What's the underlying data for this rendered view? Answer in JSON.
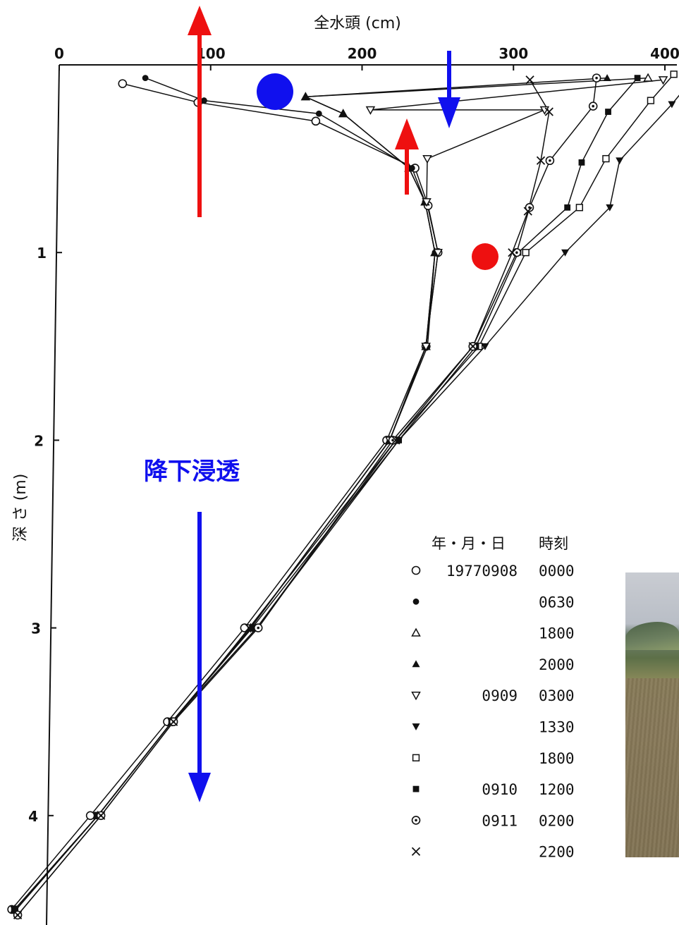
{
  "chart_data": {
    "type": "line",
    "xlabel": "全水頭 (cm)",
    "ylabel": "深 さ (m)",
    "xlim": [
      0,
      410
    ],
    "ylim": [
      0,
      4.5
    ],
    "y_inverted": true,
    "x_ticks": [
      0,
      100,
      200,
      300,
      400
    ],
    "y_ticks": [
      1,
      2,
      3,
      4
    ],
    "legend": {
      "header_date": "年・月・日",
      "header_time": "時刻",
      "placement": "bottom-right",
      "entries": [
        {
          "marker": "open-circle",
          "symbol": "○",
          "date": "19770908",
          "time": "0000"
        },
        {
          "marker": "filled-circle",
          "symbol": "●",
          "date": "",
          "time": "0630"
        },
        {
          "marker": "open-triangle-up",
          "symbol": "△",
          "date": "",
          "time": "1800"
        },
        {
          "marker": "filled-triangle-up",
          "symbol": "▲",
          "date": "",
          "time": "2000"
        },
        {
          "marker": "open-triangle-down",
          "symbol": "▽",
          "date": "0909",
          "time": "0300"
        },
        {
          "marker": "filled-triangle-down",
          "symbol": "▼",
          "date": "",
          "time": "1330"
        },
        {
          "marker": "open-square",
          "symbol": "□",
          "date": "",
          "time": "1800"
        },
        {
          "marker": "filled-square",
          "symbol": "■",
          "date": "0910",
          "time": "1200"
        },
        {
          "marker": "dotted-circle",
          "symbol": "⊙",
          "date": "0911",
          "time": "0200"
        },
        {
          "marker": "cross",
          "symbol": "×",
          "date": "",
          "time": "2200"
        }
      ]
    },
    "series": [
      {
        "name": "0000",
        "marker": "open-circle",
        "points": [
          [
            42,
            0.1
          ],
          [
            92,
            0.2
          ],
          [
            170,
            0.3
          ],
          [
            236,
            0.55
          ],
          [
            245,
            0.75
          ],
          [
            252,
            1.0
          ],
          [
            245,
            1.5
          ],
          [
            220,
            2.0
          ],
          [
            128,
            3.0
          ],
          [
            78,
            3.5
          ],
          [
            28,
            4.0
          ],
          [
            -23,
            4.5
          ]
        ]
      },
      {
        "name": "0630",
        "marker": "filled-circle",
        "points": [
          [
            57,
            0.07
          ],
          [
            96,
            0.19
          ],
          [
            172,
            0.26
          ],
          [
            234,
            0.55
          ],
          [
            243,
            0.73
          ],
          [
            250,
            1.0
          ],
          [
            246,
            1.5
          ],
          [
            222,
            2.0
          ],
          [
            132,
            3.0
          ],
          [
            81,
            3.5
          ],
          [
            33,
            4.0
          ],
          [
            -21,
            4.51
          ]
        ]
      },
      {
        "name": "1800",
        "marker": "open-triangle-up",
        "points": [
          [
            389,
            0.07
          ],
          [
            163,
            0.17
          ],
          [
            188,
            0.26
          ],
          [
            232,
            0.55
          ],
          [
            243,
            0.73
          ],
          [
            250,
            1.0
          ],
          [
            245,
            1.5
          ],
          [
            222,
            2.0
          ],
          [
            132,
            3.0
          ],
          [
            81,
            3.5
          ],
          [
            33,
            4.0
          ],
          [
            -21,
            4.5
          ]
        ]
      },
      {
        "name": "2000",
        "marker": "filled-triangle-up",
        "points": [
          [
            362,
            0.07
          ],
          [
            163,
            0.17
          ],
          [
            188,
            0.26
          ],
          [
            232,
            0.55
          ],
          [
            243,
            0.73
          ],
          [
            250,
            1.0
          ],
          [
            245,
            1.5
          ],
          [
            222,
            2.0
          ],
          [
            132,
            3.0
          ],
          [
            81,
            3.5
          ],
          [
            33,
            4.0
          ],
          [
            -21,
            4.5
          ]
        ]
      },
      {
        "name": "0300",
        "marker": "open-triangle-down",
        "points": [
          [
            399,
            0.08
          ],
          [
            206,
            0.24
          ],
          [
            321,
            0.24
          ],
          [
            244,
            0.5
          ],
          [
            244,
            0.73
          ],
          [
            252,
            1.0
          ],
          [
            245,
            1.5
          ],
          [
            222,
            2.0
          ],
          [
            132,
            3.0
          ],
          [
            81,
            3.5
          ],
          [
            33,
            4.0
          ],
          [
            -21,
            4.5
          ]
        ]
      },
      {
        "name": "1330",
        "marker": "filled-triangle-down",
        "points": [
          [
            414,
            0.12
          ],
          [
            405,
            0.21
          ],
          [
            371,
            0.51
          ],
          [
            365,
            0.76
          ],
          [
            336,
            1.0
          ],
          [
            284,
            1.5
          ],
          [
            228,
            2.0
          ],
          [
            136,
            3.0
          ],
          [
            81,
            3.5
          ],
          [
            33,
            4.0
          ],
          [
            -21,
            4.5
          ]
        ]
      },
      {
        "name": "1800",
        "marker": "open-square",
        "points": [
          [
            406,
            0.05
          ],
          [
            391,
            0.19
          ],
          [
            362,
            0.5
          ],
          [
            345,
            0.76
          ],
          [
            310,
            1.0
          ],
          [
            280,
            1.5
          ],
          [
            226,
            2.0
          ],
          [
            136,
            3.0
          ],
          [
            81,
            3.5
          ],
          [
            33,
            4.0
          ],
          [
            -21,
            4.5
          ]
        ]
      },
      {
        "name": "1200",
        "marker": "filled-square",
        "points": [
          [
            382,
            0.07
          ],
          [
            363,
            0.25
          ],
          [
            346,
            0.52
          ],
          [
            337,
            0.76
          ],
          [
            305,
            1.0
          ],
          [
            278,
            1.5
          ],
          [
            228,
            2.0
          ],
          [
            133,
            3.0
          ],
          [
            81,
            3.5
          ],
          [
            33,
            4.0
          ],
          [
            -21,
            4.5
          ]
        ]
      },
      {
        "name": "0200",
        "marker": "dotted-circle",
        "points": [
          [
            355,
            0.07
          ],
          [
            353,
            0.22
          ],
          [
            325,
            0.51
          ],
          [
            312,
            0.76
          ],
          [
            304,
            1.0
          ],
          [
            276,
            1.5
          ],
          [
            224,
            2.0
          ],
          [
            137,
            3.0
          ],
          [
            82,
            3.5
          ],
          [
            35,
            4.0
          ],
          [
            -19,
            4.53
          ]
        ]
      },
      {
        "name": "2200",
        "marker": "cross",
        "points": [
          [
            311,
            0.08
          ],
          [
            324,
            0.25
          ],
          [
            319,
            0.51
          ],
          [
            311,
            0.78
          ],
          [
            301,
            1.0
          ],
          [
            276,
            1.5
          ],
          [
            226,
            2.0
          ],
          [
            131,
            3.0
          ],
          [
            82,
            3.5
          ],
          [
            35,
            4.0
          ],
          [
            -19,
            4.53
          ]
        ]
      }
    ]
  },
  "annotations": {
    "note": "降下浸透",
    "colors": {
      "red": "#ee1010",
      "blue": "#1010ee"
    }
  }
}
